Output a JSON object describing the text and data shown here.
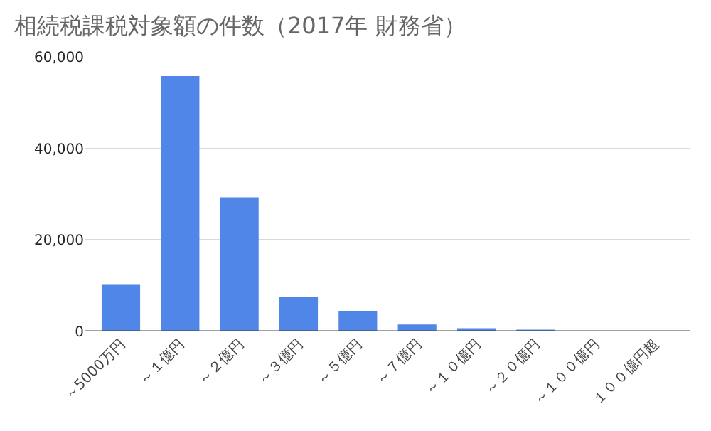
{
  "chart_data": {
    "type": "bar",
    "title": "相続税課税対象額の件数（2017年 財務省）",
    "categories": [
      "～5000万円",
      "～１億円",
      "～２億円",
      "～３億円",
      "～５億円",
      "～７億円",
      "～１０億円",
      "～２０億円",
      "～１００億円",
      "１００億円超"
    ],
    "values": [
      10200,
      55800,
      29300,
      7600,
      4500,
      1500,
      700,
      400,
      100,
      50
    ],
    "color": "#4f86e8",
    "ylim": [
      0,
      60000
    ],
    "yticks": [
      {
        "value": 0,
        "label": "0"
      },
      {
        "value": 20000,
        "label": "20,000"
      },
      {
        "value": 40000,
        "label": "40,000"
      },
      {
        "value": 60000,
        "label": "60,000"
      }
    ],
    "grid": "y"
  }
}
